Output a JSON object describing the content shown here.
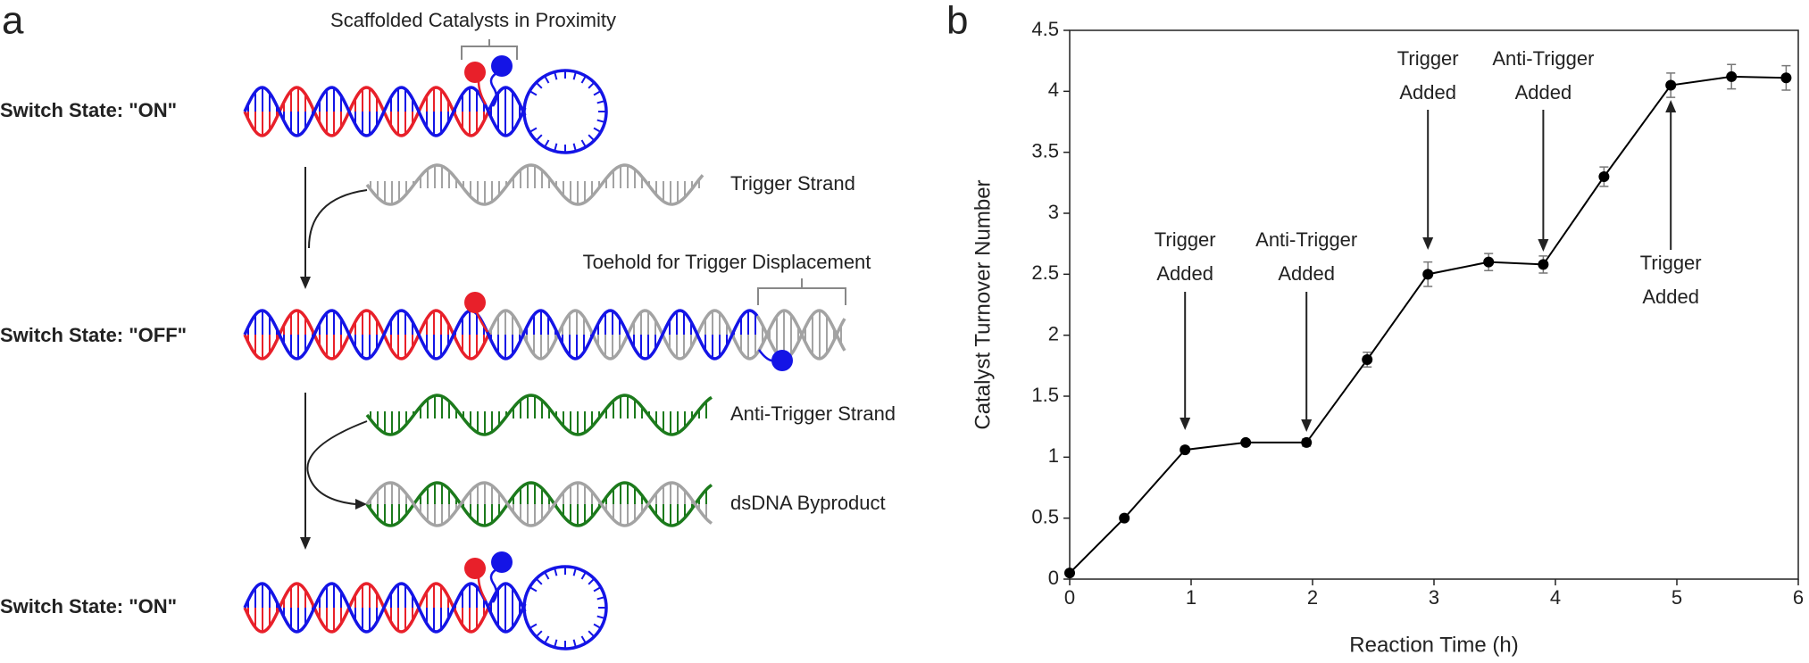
{
  "panel_labels": [
    "a",
    "b"
  ],
  "diagram": {
    "top_label": "Scaffolded Catalysts in Proximity",
    "states": [
      "Switch State: \"ON\"",
      "Switch State: \"OFF\"",
      "Switch State: \"ON\""
    ],
    "strands": [
      "Trigger Strand",
      "Anti-Trigger Strand",
      "dsDNA Byproduct"
    ],
    "toehold_label": "Toehold for Trigger Displacement"
  },
  "chart_data": {
    "type": "line",
    "xlabel": "Reaction Time (h)",
    "ylabel": "Catalyst Turnover Number",
    "x": [
      0,
      0.45,
      0.95,
      1.45,
      1.95,
      2.45,
      2.95,
      3.45,
      3.9,
      4.4,
      4.95,
      5.45,
      5.9
    ],
    "values": [
      0.05,
      0.5,
      1.06,
      1.12,
      1.12,
      1.8,
      2.5,
      2.6,
      2.58,
      3.3,
      4.05,
      4.12,
      4.11
    ],
    "errors": [
      0.01,
      0.01,
      0.02,
      0.01,
      0.03,
      0.06,
      0.1,
      0.07,
      0.07,
      0.08,
      0.1,
      0.1,
      0.1
    ],
    "color": "#000000",
    "xlim": [
      0,
      6
    ],
    "ylim": [
      0,
      4.5
    ],
    "xticks": [
      0,
      1,
      2,
      3,
      4,
      5,
      6
    ],
    "yticks": [
      0,
      0.5,
      1,
      1.5,
      2,
      2.5,
      3,
      3.5,
      4,
      4.5
    ],
    "annotations": [
      {
        "x": 0.95,
        "lines": [
          "Trigger",
          "Added"
        ]
      },
      {
        "x": 1.95,
        "lines": [
          "Anti-Trigger",
          "Added"
        ]
      },
      {
        "x": 2.95,
        "lines": [
          "Trigger",
          "Added"
        ]
      },
      {
        "x": 3.9,
        "lines": [
          "Anti-Trigger",
          "Added"
        ]
      },
      {
        "x": 4.95,
        "lines": [
          "Trigger",
          "Added"
        ]
      }
    ]
  }
}
